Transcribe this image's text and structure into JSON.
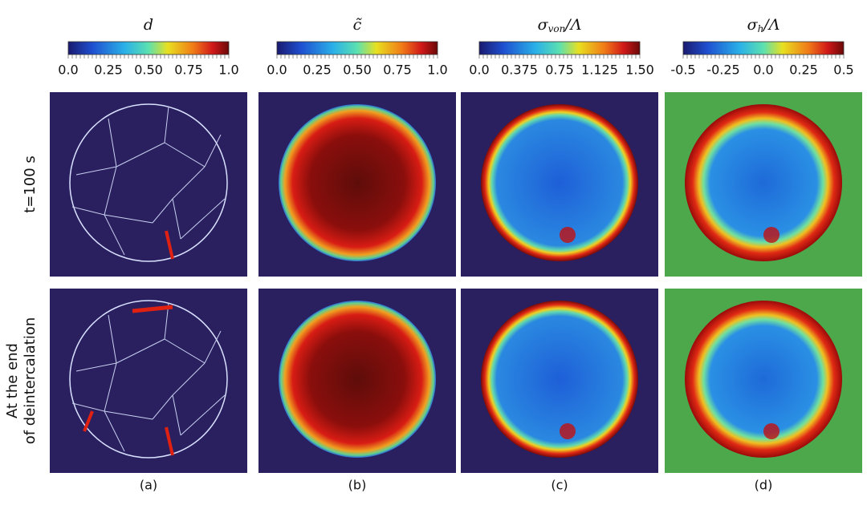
{
  "columns": [
    {
      "title": {
        "main": "d"
      },
      "ticks": [
        "0.0",
        "0.25",
        "0.50",
        "0.75",
        "1.0"
      ],
      "caption": "(a)"
    },
    {
      "title": {
        "main": "c̃"
      },
      "ticks": [
        "0.0",
        "0.25",
        "0.50",
        "0.75",
        "1.0"
      ],
      "caption": "(b)"
    },
    {
      "title": {
        "main": "σ",
        "sub": "von",
        "rest": "/Λ"
      },
      "ticks": [
        "0.0",
        "0.375",
        "0.75",
        "1.125",
        "1.50"
      ],
      "caption": "(c)"
    },
    {
      "title": {
        "main": "σ",
        "sub": "h",
        "rest": "/Λ"
      },
      "ticks": [
        "-0.5",
        "-0.25",
        "0.0",
        "0.25",
        "0.5"
      ],
      "caption": "(d)"
    }
  ],
  "rows": [
    {
      "label": [
        "t=100 s"
      ]
    },
    {
      "label": [
        "At the end",
        "of deintercalation"
      ]
    }
  ]
}
